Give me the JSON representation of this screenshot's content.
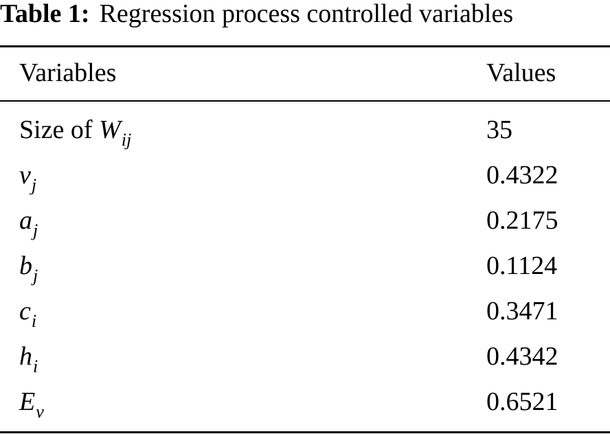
{
  "caption": {
    "label": "Table 1:",
    "text": "Regression process controlled variables"
  },
  "table": {
    "headers": [
      "Variables",
      "Values"
    ],
    "rows": [
      {
        "prefix": "Size of ",
        "symbol": "W",
        "subscript": "ij",
        "value": "35"
      },
      {
        "prefix": "",
        "symbol": "v",
        "subscript": "j",
        "value": "0.4322"
      },
      {
        "prefix": "",
        "symbol": "a",
        "subscript": "j",
        "value": "0.2175"
      },
      {
        "prefix": "",
        "symbol": "b",
        "subscript": "j",
        "value": "0.1124"
      },
      {
        "prefix": "",
        "symbol": "c",
        "subscript": "i",
        "value": "0.3471"
      },
      {
        "prefix": "",
        "symbol": "h",
        "subscript": "i",
        "value": "0.4342"
      },
      {
        "prefix": "",
        "symbol": "E",
        "subscript": "v",
        "value": "0.6521"
      }
    ]
  }
}
